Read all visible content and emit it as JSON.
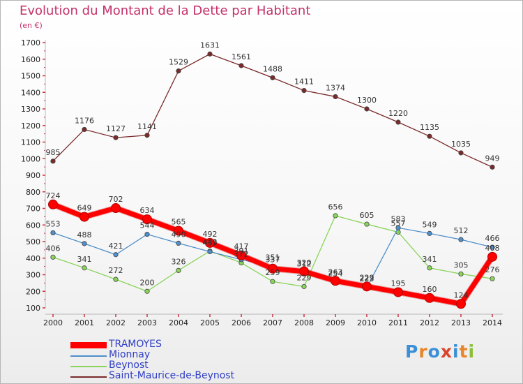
{
  "title": "Evolution du Montant de la Dette par Habitant",
  "unit_label": "(en €)",
  "logo": {
    "text": "Proxiti",
    "letters": [
      "P",
      "r",
      "o",
      "x",
      "i",
      "t",
      "i"
    ],
    "colors": [
      "#3a8fd6",
      "#e7862a",
      "#3a8fd6",
      "#d9442c",
      "#3a8fd6",
      "#e7862a",
      "#8bbf3a"
    ]
  },
  "chart_data": {
    "type": "line",
    "x": [
      "2000",
      "2001",
      "2002",
      "2003",
      "2004",
      "2005",
      "2006",
      "2007",
      "2008",
      "2009",
      "2010",
      "2011",
      "2012",
      "2013",
      "2014"
    ],
    "ylim": [
      100,
      1700
    ],
    "yticks": [
      100,
      200,
      300,
      400,
      500,
      600,
      700,
      800,
      900,
      1000,
      1100,
      1200,
      1300,
      1400,
      1500,
      1600,
      1700
    ],
    "grid": false,
    "legend_position": "bottom-left",
    "series": [
      {
        "name": "TRAMOYES",
        "color": "#ff0000",
        "emphasis": true,
        "values": [
          724,
          649,
          702,
          634,
          565,
          492,
          417,
          337,
          320,
          263,
          229,
          195,
          160,
          124,
          408
        ],
        "labels": [
          "724",
          "649",
          "702",
          "634",
          "565",
          "492",
          "417",
          "337",
          "320",
          "263",
          "229",
          "195",
          "160",
          "124",
          "408"
        ]
      },
      {
        "name": "Mionnay",
        "color": "#4f8fca",
        "values": [
          553,
          488,
          421,
          544,
          490,
          439,
          391,
          351,
          312,
          254,
          223,
          583,
          549,
          512,
          466
        ],
        "labels": [
          "553",
          "488",
          "421",
          "544",
          "490",
          "439",
          "391",
          "351",
          "312",
          "254",
          "223",
          "583",
          "549",
          "512",
          "466"
        ]
      },
      {
        "name": "Beynost",
        "color": "#8ad45a",
        "values": [
          406,
          341,
          272,
          200,
          326,
          443,
          372,
          259,
          229,
          656,
          605,
          557,
          341,
          305,
          276
        ],
        "labels": [
          "406",
          "341",
          "272",
          "200",
          "326",
          "443",
          "372",
          "259",
          "229",
          "656",
          "605",
          "557",
          "341",
          "305",
          "276"
        ]
      },
      {
        "name": "Saint-Maurice-de-Beynost",
        "color": "#7a2a2a",
        "values": [
          985,
          1176,
          1127,
          1141,
          1529,
          1631,
          1561,
          1488,
          1411,
          1374,
          1300,
          1220,
          1135,
          1035,
          949
        ],
        "labels": [
          "985",
          "1176",
          "1127",
          "1141",
          "1529",
          "1631",
          "1561",
          "1488",
          "1411",
          "1374",
          "1300",
          "1220",
          "1135",
          "1035",
          "949"
        ]
      }
    ]
  }
}
